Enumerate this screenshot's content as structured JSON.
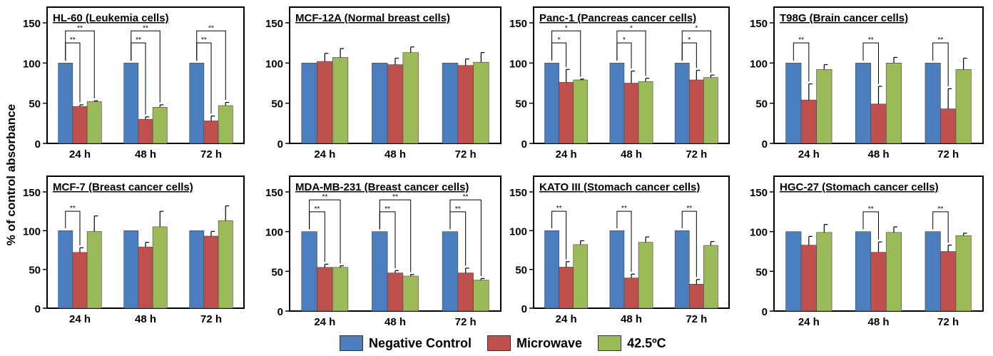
{
  "figure": {
    "ylabel": "% of control absorbance",
    "colors": {
      "control": "#4a7ebf",
      "microwave": "#c0504d",
      "heat": "#9bbb59"
    }
  },
  "legend": [
    {
      "label": "Negative Control",
      "color": "#4a7ebf"
    },
    {
      "label": "Microwave",
      "color": "#c0504d"
    },
    {
      "label": "42.5ºC",
      "color": "#9bbb59"
    }
  ],
  "chart_data": [
    {
      "type": "bar",
      "title": "HL-60 (Leukemia cells)",
      "categories": [
        "24 h",
        "48 h",
        "72 h"
      ],
      "ylim": [
        0,
        150
      ],
      "yticks": [
        0,
        50,
        100,
        150
      ],
      "series": [
        {
          "name": "Negative Control",
          "values": [
            100,
            100,
            100
          ],
          "errors": [
            0,
            0,
            0
          ]
        },
        {
          "name": "Microwave",
          "values": [
            46,
            30,
            28
          ],
          "errors": [
            2,
            3,
            6
          ]
        },
        {
          "name": "42.5ºC",
          "values": [
            52,
            45,
            47
          ],
          "errors": [
            1,
            3,
            4
          ]
        }
      ],
      "significance": [
        {
          "group": 0,
          "to": 1,
          "label": "**"
        },
        {
          "group": 0,
          "to": 2,
          "label": "**"
        },
        {
          "group": 1,
          "to": 1,
          "label": "**"
        },
        {
          "group": 1,
          "to": 2,
          "label": "**"
        },
        {
          "group": 2,
          "to": 1,
          "label": "**"
        },
        {
          "group": 2,
          "to": 2,
          "label": "**"
        }
      ]
    },
    {
      "type": "bar",
      "title": "MCF-12A (Normal breast cells)",
      "categories": [
        "24 h",
        "48 h",
        "72 h"
      ],
      "ylim": [
        0,
        150
      ],
      "yticks": [
        0,
        50,
        100,
        150
      ],
      "series": [
        {
          "name": "Negative Control",
          "values": [
            100,
            100,
            100
          ],
          "errors": [
            0,
            0,
            0
          ]
        },
        {
          "name": "Microwave",
          "values": [
            102,
            98,
            97
          ],
          "errors": [
            10,
            8,
            8
          ]
        },
        {
          "name": "42.5ºC",
          "values": [
            107,
            113,
            101
          ],
          "errors": [
            11,
            7,
            12
          ]
        }
      ],
      "significance": []
    },
    {
      "type": "bar",
      "title": "Panc-1 (Pancreas cancer cells)",
      "categories": [
        "24 h",
        "48 h",
        "72 h"
      ],
      "ylim": [
        0,
        150
      ],
      "yticks": [
        0,
        50,
        100,
        150
      ],
      "series": [
        {
          "name": "Negative Control",
          "values": [
            100,
            100,
            100
          ],
          "errors": [
            0,
            0,
            0
          ]
        },
        {
          "name": "Microwave",
          "values": [
            76,
            75,
            79
          ],
          "errors": [
            16,
            15,
            12
          ]
        },
        {
          "name": "42.5ºC",
          "values": [
            79,
            77,
            82
          ],
          "errors": [
            1,
            4,
            3
          ]
        }
      ],
      "significance": [
        {
          "group": 0,
          "to": 1,
          "label": "*"
        },
        {
          "group": 0,
          "to": 2,
          "label": "*"
        },
        {
          "group": 1,
          "to": 1,
          "label": "*"
        },
        {
          "group": 1,
          "to": 2,
          "label": "*"
        },
        {
          "group": 2,
          "to": 1,
          "label": "*"
        },
        {
          "group": 2,
          "to": 2,
          "label": "*"
        }
      ]
    },
    {
      "type": "bar",
      "title": "T98G (Brain cancer cells)",
      "categories": [
        "24 h",
        "48 h",
        "72 h"
      ],
      "ylim": [
        0,
        150
      ],
      "yticks": [
        0,
        50,
        100,
        150
      ],
      "series": [
        {
          "name": "Negative Control",
          "values": [
            100,
            100,
            100
          ],
          "errors": [
            0,
            0,
            0
          ]
        },
        {
          "name": "Microwave",
          "values": [
            54,
            49,
            43
          ],
          "errors": [
            20,
            22,
            25
          ]
        },
        {
          "name": "42.5ºC",
          "values": [
            92,
            100,
            92
          ],
          "errors": [
            6,
            7,
            14
          ]
        }
      ],
      "significance": [
        {
          "group": 0,
          "to": 1,
          "label": "**"
        },
        {
          "group": 1,
          "to": 1,
          "label": "**"
        },
        {
          "group": 2,
          "to": 1,
          "label": "**"
        }
      ]
    },
    {
      "type": "bar",
      "title": "MCF-7 (Breast cancer cells)",
      "categories": [
        "24 h",
        "48 h",
        "72 h"
      ],
      "ylim": [
        0,
        150
      ],
      "yticks": [
        0,
        50,
        100,
        150
      ],
      "series": [
        {
          "name": "Negative Control",
          "values": [
            100,
            100,
            100
          ],
          "errors": [
            0,
            0,
            0
          ]
        },
        {
          "name": "Microwave",
          "values": [
            72,
            79,
            93
          ],
          "errors": [
            6,
            6,
            6
          ]
        },
        {
          "name": "42.5ºC",
          "values": [
            99,
            105,
            113
          ],
          "errors": [
            20,
            20,
            19
          ]
        }
      ],
      "significance": [
        {
          "group": 0,
          "to": 1,
          "label": "**"
        }
      ]
    },
    {
      "type": "bar",
      "title": "MDA-MB-231 (Breast cancer cells)",
      "categories": [
        "24 h",
        "48 h",
        "72 h"
      ],
      "ylim": [
        0,
        150
      ],
      "yticks": [
        0,
        50,
        100,
        150
      ],
      "series": [
        {
          "name": "Negative Control",
          "values": [
            100,
            100,
            100
          ],
          "errors": [
            0,
            0,
            0
          ]
        },
        {
          "name": "Microwave",
          "values": [
            55,
            48,
            48
          ],
          "errors": [
            4,
            3,
            6
          ]
        },
        {
          "name": "42.5ºC",
          "values": [
            55,
            44,
            39
          ],
          "errors": [
            2,
            2,
            2
          ]
        }
      ],
      "significance": [
        {
          "group": 0,
          "to": 1,
          "label": "**"
        },
        {
          "group": 0,
          "to": 2,
          "label": "**"
        },
        {
          "group": 1,
          "to": 1,
          "label": "**"
        },
        {
          "group": 1,
          "to": 2,
          "label": "**"
        },
        {
          "group": 2,
          "to": 1,
          "label": "**"
        },
        {
          "group": 2,
          "to": 2,
          "label": "**"
        }
      ]
    },
    {
      "type": "bar",
      "title": "KATO III (Stomach cancer cells)",
      "categories": [
        "24 h",
        "48 h",
        "72 h"
      ],
      "ylim": [
        0,
        150
      ],
      "yticks": [
        0,
        50,
        100,
        150
      ],
      "series": [
        {
          "name": "Negative Control",
          "values": [
            100,
            100,
            100
          ],
          "errors": [
            0,
            0,
            0
          ]
        },
        {
          "name": "Microwave",
          "values": [
            53,
            39,
            31
          ],
          "errors": [
            7,
            5,
            6
          ]
        },
        {
          "name": "42.5ºC",
          "values": [
            82,
            85,
            81
          ],
          "errors": [
            5,
            7,
            5
          ]
        }
      ],
      "significance": [
        {
          "group": 0,
          "to": 1,
          "label": "**"
        },
        {
          "group": 1,
          "to": 1,
          "label": "**"
        },
        {
          "group": 2,
          "to": 1,
          "label": "**"
        }
      ]
    },
    {
      "type": "bar",
      "title": "HGC-27 (Stomach cancer cells)",
      "categories": [
        "24 h",
        "48 h",
        "72 h"
      ],
      "ylim": [
        0,
        150
      ],
      "yticks": [
        0,
        50,
        100,
        150
      ],
      "series": [
        {
          "name": "Negative Control",
          "values": [
            100,
            100,
            100
          ],
          "errors": [
            0,
            0,
            0
          ]
        },
        {
          "name": "Microwave",
          "values": [
            83,
            74,
            75
          ],
          "errors": [
            11,
            13,
            8
          ]
        },
        {
          "name": "42.5ºC",
          "values": [
            99,
            99,
            95
          ],
          "errors": [
            10,
            7,
            3
          ]
        }
      ],
      "significance": [
        {
          "group": 1,
          "to": 1,
          "label": "**"
        },
        {
          "group": 2,
          "to": 1,
          "label": "**"
        }
      ]
    }
  ]
}
